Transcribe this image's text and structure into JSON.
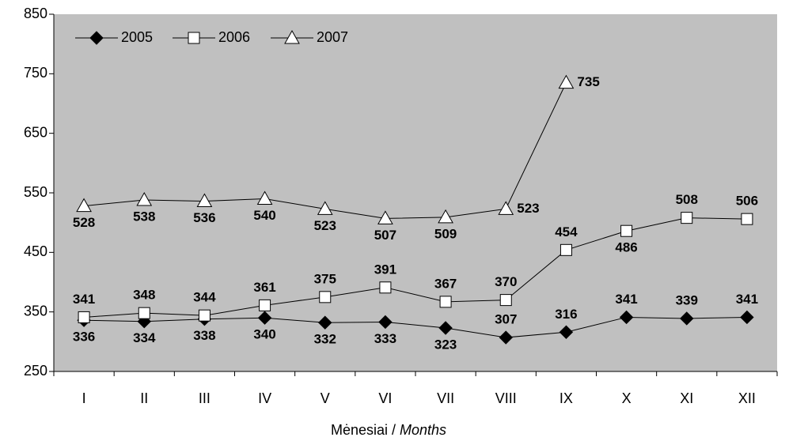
{
  "chart_data": {
    "type": "line",
    "categories": [
      "I",
      "II",
      "III",
      "IV",
      "V",
      "VI",
      "VII",
      "VIII",
      "IX",
      "X",
      "XI",
      "XII"
    ],
    "series": [
      {
        "name": "2005",
        "color": "#000000",
        "marker": "diamond",
        "values": [
          336,
          334,
          338,
          340,
          332,
          333,
          323,
          307,
          316,
          341,
          339,
          341
        ]
      },
      {
        "name": "2006",
        "color": "#ffffff",
        "marker": "square",
        "values": [
          341,
          348,
          344,
          361,
          375,
          391,
          367,
          370,
          454,
          486,
          508,
          506
        ]
      },
      {
        "name": "2007",
        "color": "#ffffff",
        "marker": "triangle",
        "values": [
          528,
          538,
          536,
          540,
          523,
          507,
          509,
          523,
          735,
          null,
          null,
          null
        ]
      }
    ],
    "xlabel": [
      "Mėnesiai /",
      "Months"
    ],
    "ylim": [
      250,
      850
    ],
    "yticks": [
      250,
      350,
      450,
      550,
      650,
      750,
      850
    ],
    "grid": false,
    "legend": "top-left",
    "background": "#c0c0c0"
  }
}
